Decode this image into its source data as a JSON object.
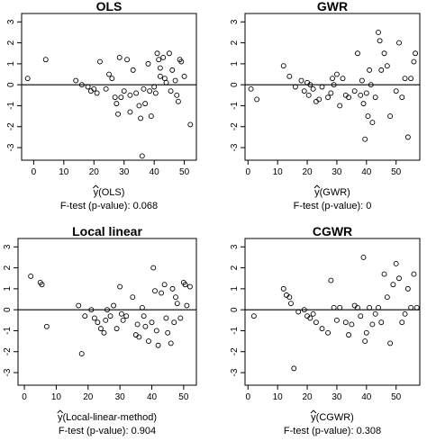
{
  "chart_data": [
    {
      "type": "scatter",
      "title": "OLS",
      "xlabel_hat": "y",
      "xlabel_rest": "(OLS)",
      "note": "F-test (p-value): 0.068",
      "xlim": [
        -4,
        54
      ],
      "ylim": [
        -3.6,
        3.4
      ],
      "xticks": [
        "0",
        "10",
        "20",
        "30",
        "40",
        "50"
      ],
      "yticks": [
        "-3",
        "-2",
        "-1",
        "0",
        "1",
        "2",
        "3"
      ],
      "reference_line_y": 0,
      "points": [
        [
          -2,
          0.3
        ],
        [
          4,
          1.2
        ],
        [
          14,
          0.2
        ],
        [
          16,
          0.0
        ],
        [
          18,
          -0.1
        ],
        [
          19,
          -0.3
        ],
        [
          20,
          -0.2
        ],
        [
          21,
          -0.4
        ],
        [
          22,
          1.1
        ],
        [
          24,
          -0.2
        ],
        [
          25,
          0.5
        ],
        [
          26,
          0.3
        ],
        [
          27,
          -0.6
        ],
        [
          27.5,
          -0.9
        ],
        [
          28,
          -1.4
        ],
        [
          28.5,
          1.3
        ],
        [
          29,
          -0.6
        ],
        [
          30,
          -0.3
        ],
        [
          31,
          1.2
        ],
        [
          32,
          -1.3
        ],
        [
          32,
          -0.5
        ],
        [
          33,
          0.7
        ],
        [
          34,
          -0.4
        ],
        [
          35,
          -1.0
        ],
        [
          35.5,
          -1.6
        ],
        [
          36,
          -3.4
        ],
        [
          36.5,
          -0.2
        ],
        [
          37,
          -0.9
        ],
        [
          38,
          1.0
        ],
        [
          38.5,
          -0.3
        ],
        [
          39,
          -1.5
        ],
        [
          40,
          -0.1
        ],
        [
          40.5,
          -0.4
        ],
        [
          41,
          1.5
        ],
        [
          41.5,
          1.2
        ],
        [
          42,
          0.8
        ],
        [
          42,
          0.4
        ],
        [
          43,
          1.3
        ],
        [
          43.5,
          0.3
        ],
        [
          44,
          0.1
        ],
        [
          45,
          1.5
        ],
        [
          45.5,
          -0.3
        ],
        [
          46,
          0.7
        ],
        [
          47,
          0.2
        ],
        [
          47.5,
          -0.5
        ],
        [
          48,
          -0.8
        ],
        [
          48.5,
          1.2
        ],
        [
          49,
          1.1
        ],
        [
          50,
          0.4
        ],
        [
          52,
          -1.9
        ]
      ]
    },
    {
      "type": "scatter",
      "title": "GWR",
      "xlabel_hat": "y",
      "xlabel_rest": "(GWR)",
      "note": "F-test (p-value): 0",
      "xlim": [
        -1,
        58
      ],
      "ylim": [
        -3.6,
        3.4
      ],
      "xticks": [
        "0",
        "10",
        "20",
        "30",
        "40",
        "50"
      ],
      "yticks": [
        "-3",
        "-2",
        "-1",
        "0",
        "1",
        "2",
        "3"
      ],
      "reference_line_y": 0,
      "points": [
        [
          1,
          -0.2
        ],
        [
          3,
          -0.7
        ],
        [
          12,
          0.9
        ],
        [
          14,
          0.4
        ],
        [
          16,
          -0.1
        ],
        [
          18,
          0.2
        ],
        [
          19,
          -0.3
        ],
        [
          20,
          0.1
        ],
        [
          20.5,
          -0.5
        ],
        [
          21,
          0.0
        ],
        [
          22,
          -0.2
        ],
        [
          23,
          -0.8
        ],
        [
          24,
          -0.7
        ],
        [
          25,
          -0.1
        ],
        [
          27,
          -0.6
        ],
        [
          28,
          -0.4
        ],
        [
          28.5,
          0.3
        ],
        [
          29,
          0.0
        ],
        [
          30,
          0.5
        ],
        [
          31,
          -1.0
        ],
        [
          32,
          0.3
        ],
        [
          33,
          -0.5
        ],
        [
          34,
          -0.6
        ],
        [
          36,
          -0.3
        ],
        [
          37,
          1.5
        ],
        [
          38,
          -0.5
        ],
        [
          38.5,
          0.2
        ],
        [
          39,
          -0.9
        ],
        [
          39.5,
          -2.6
        ],
        [
          40,
          -0.4
        ],
        [
          40.5,
          -1.5
        ],
        [
          41,
          0.7
        ],
        [
          41.5,
          0.0
        ],
        [
          42,
          -1.8
        ],
        [
          43,
          -0.6
        ],
        [
          44,
          2.5
        ],
        [
          44.5,
          2.1
        ],
        [
          45,
          0.7
        ],
        [
          46,
          1.5
        ],
        [
          47,
          0.9
        ],
        [
          48,
          -1.5
        ],
        [
          50,
          -0.3
        ],
        [
          51,
          2.0
        ],
        [
          52,
          -0.6
        ],
        [
          53,
          0.3
        ],
        [
          54,
          -2.5
        ],
        [
          55,
          0.3
        ],
        [
          56,
          1.1
        ],
        [
          56.5,
          1.5
        ]
      ]
    },
    {
      "type": "scatter",
      "title": "Local linear",
      "xlabel_hat": "y",
      "xlabel_rest": "(Local-linear-method)",
      "note": "F-test (p-value): 0.904",
      "xlim": [
        -2,
        54
      ],
      "ylim": [
        -3.6,
        3.4
      ],
      "xticks": [
        "0",
        "10",
        "20",
        "30",
        "40",
        "50"
      ],
      "yticks": [
        "-3",
        "-2",
        "-1",
        "0",
        "1",
        "2",
        "3"
      ],
      "reference_line_y": 0,
      "points": [
        [
          2,
          1.6
        ],
        [
          5,
          1.3
        ],
        [
          5.5,
          1.2
        ],
        [
          7,
          -0.8
        ],
        [
          17,
          0.2
        ],
        [
          18,
          -2.1
        ],
        [
          19,
          -0.3
        ],
        [
          21,
          0.0
        ],
        [
          22,
          -0.4
        ],
        [
          23,
          -0.6
        ],
        [
          24,
          -0.9
        ],
        [
          25,
          -1.1
        ],
        [
          25.5,
          -0.5
        ],
        [
          26,
          0.0
        ],
        [
          27,
          -0.3
        ],
        [
          28,
          0.2
        ],
        [
          29,
          -0.9
        ],
        [
          30,
          1.1
        ],
        [
          30.5,
          -0.2
        ],
        [
          31,
          -0.5
        ],
        [
          32,
          -0.3
        ],
        [
          34,
          0.6
        ],
        [
          35,
          -1.2
        ],
        [
          35.5,
          -0.7
        ],
        [
          36,
          -1.3
        ],
        [
          37,
          0.1
        ],
        [
          37.5,
          -0.3
        ],
        [
          38,
          -0.8
        ],
        [
          39,
          -1.5
        ],
        [
          40,
          -0.6
        ],
        [
          40.5,
          2.0
        ],
        [
          41,
          0.9
        ],
        [
          41.5,
          -1.0
        ],
        [
          42,
          -1.7
        ],
        [
          43,
          0.8
        ],
        [
          44,
          1.2
        ],
        [
          44.5,
          -0.4
        ],
        [
          45,
          -1.1
        ],
        [
          46,
          -1.6
        ],
        [
          46.5,
          1.0
        ],
        [
          47,
          -0.6
        ],
        [
          47.5,
          0.6
        ],
        [
          48,
          0.3
        ],
        [
          49,
          -0.4
        ],
        [
          50,
          1.3
        ],
        [
          50.5,
          1.2
        ],
        [
          51,
          0.2
        ],
        [
          52,
          1.1
        ]
      ]
    },
    {
      "type": "scatter",
      "title": "CGWR",
      "xlabel_hat": "y",
      "xlabel_rest": "(CGWR)",
      "note": "F-test (p-value): 0.308",
      "xlim": [
        -1,
        58
      ],
      "ylim": [
        -3.6,
        3.4
      ],
      "xticks": [
        "0",
        "10",
        "20",
        "30",
        "40",
        "50"
      ],
      "yticks": [
        "-3",
        "-2",
        "-1",
        "0",
        "1",
        "2",
        "3"
      ],
      "reference_line_y": 0,
      "points": [
        [
          2,
          -0.3
        ],
        [
          12,
          1.0
        ],
        [
          13,
          0.7
        ],
        [
          14,
          0.6
        ],
        [
          14.5,
          0.3
        ],
        [
          15.5,
          -2.8
        ],
        [
          17,
          -0.1
        ],
        [
          19,
          0.0
        ],
        [
          20,
          -0.3
        ],
        [
          21,
          -0.4
        ],
        [
          22,
          -0.2
        ],
        [
          23,
          -0.6
        ],
        [
          25,
          -0.9
        ],
        [
          27,
          -1.1
        ],
        [
          28,
          1.4
        ],
        [
          29,
          0.1
        ],
        [
          30,
          -0.5
        ],
        [
          31,
          0.1
        ],
        [
          33,
          -0.6
        ],
        [
          34,
          -1.2
        ],
        [
          35,
          -0.7
        ],
        [
          36,
          0.2
        ],
        [
          37,
          0.1
        ],
        [
          38,
          -0.3
        ],
        [
          39,
          2.5
        ],
        [
          39.5,
          -1.5
        ],
        [
          40,
          -1.1
        ],
        [
          41,
          0.1
        ],
        [
          42,
          -0.7
        ],
        [
          43,
          -0.2
        ],
        [
          44,
          0.1
        ],
        [
          45,
          -0.6
        ],
        [
          46,
          1.7
        ],
        [
          47,
          0.6
        ],
        [
          48,
          -1.6
        ],
        [
          49,
          1.2
        ],
        [
          50,
          2.2
        ],
        [
          51,
          1.5
        ],
        [
          52,
          -0.6
        ],
        [
          53,
          -0.2
        ],
        [
          54,
          1.0
        ],
        [
          55,
          0.1
        ],
        [
          56,
          1.7
        ],
        [
          57,
          0.1
        ]
      ]
    }
  ]
}
